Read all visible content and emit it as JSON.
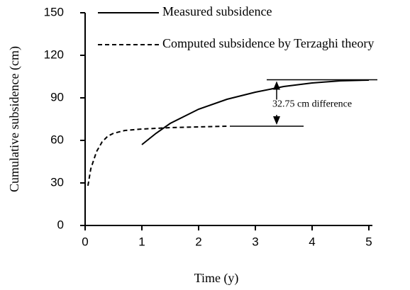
{
  "chart_data": {
    "type": "line",
    "xlabel": "Time (y)",
    "ylabel": "Cumulative subsidence (cm)",
    "xlim": [
      0,
      5
    ],
    "ylim": [
      0,
      150
    ],
    "xticks": [
      0,
      1,
      2,
      3,
      4,
      5
    ],
    "yticks": [
      0,
      30,
      60,
      90,
      120,
      150
    ],
    "legend": "top",
    "series": [
      {
        "name": "Measured subsidence",
        "color": "#000000",
        "dash": false,
        "x": [
          1,
          1.25,
          1.5,
          1.75,
          2,
          2.5,
          3,
          3.5,
          4,
          4.5,
          5
        ],
        "values": [
          57,
          65,
          72,
          77,
          82,
          89,
          94,
          98,
          100.5,
          102,
          102.5
        ]
      },
      {
        "name": "Computed subsidence by Terzaghi theory",
        "color": "#000000",
        "dash": true,
        "x": [
          0.05,
          0.1,
          0.2,
          0.3,
          0.4,
          0.5,
          0.7,
          1,
          1.5,
          2,
          2.5
        ],
        "values": [
          28,
          40,
          52,
          59,
          63,
          65,
          67,
          68,
          69,
          69.5,
          70
        ]
      }
    ],
    "annotation": {
      "text": "32.75 cm difference",
      "upper": 102.75,
      "lower": 70
    }
  }
}
